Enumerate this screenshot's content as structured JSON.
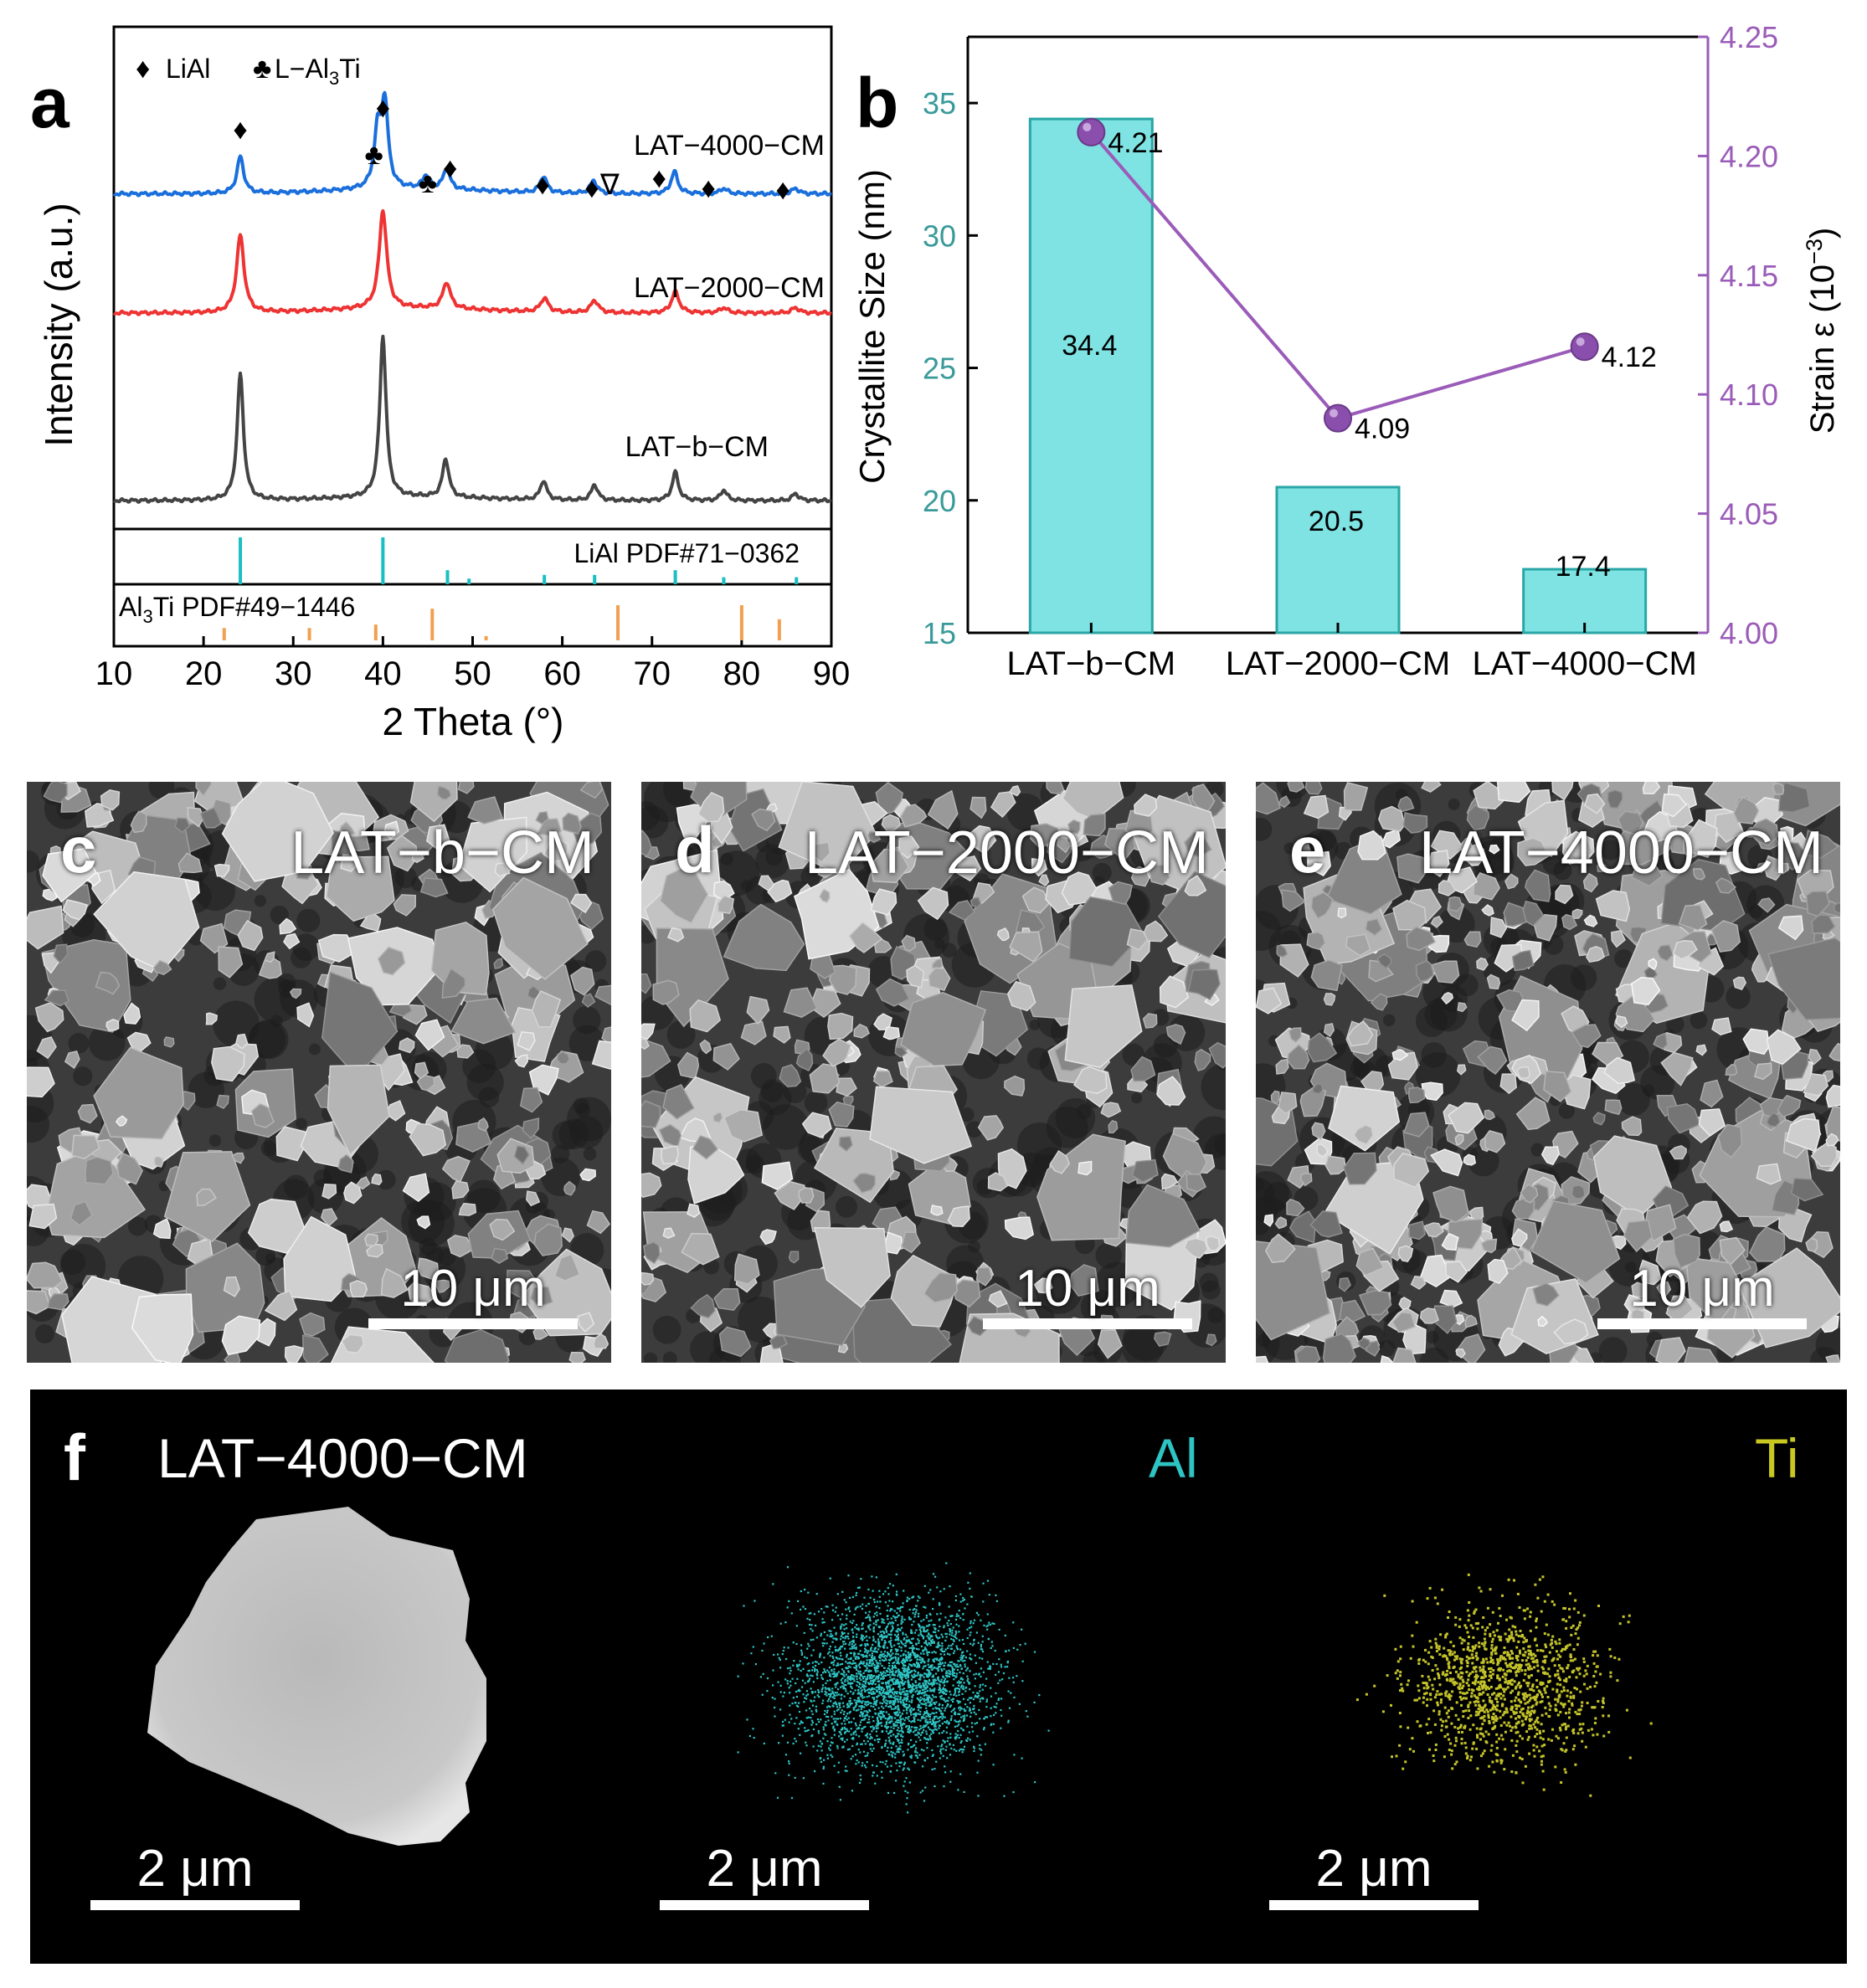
{
  "panel_a": {
    "letter": "a",
    "xlabel": "2 Theta (°)",
    "ylabel": "Intensity (a.u.)",
    "legend_liai": "LiAl",
    "legend_lal3ti": "L−Al",
    "legend_lal3ti_sub": "3",
    "legend_lal3ti_tail": "Ti",
    "ref_liai": "LiAl PDF#71−0362",
    "ref_al3ti": "Al",
    "ref_al3ti_sub": "3",
    "ref_al3ti_tail": "Ti PDF#49−1446",
    "markers": {
      "liai": "♦",
      "lal3ti": "♣",
      "other": "∇"
    }
  },
  "panel_b": {
    "letter": "b",
    "ylabel_left": "Crystallite Size (nm)",
    "ylabel_right": "Strain ε (10",
    "ylabel_right_sup": "−3",
    "ylabel_right_tail": ")"
  },
  "panel_c": {
    "letter": "c",
    "title": "LAT−b−CM",
    "scale": "10 μm"
  },
  "panel_d": {
    "letter": "d",
    "title": "LAT−2000−CM",
    "scale": "10 μm"
  },
  "panel_e": {
    "letter": "e",
    "title": "LAT−4000−CM",
    "scale": "10 μm"
  },
  "panel_f": {
    "letter": "f",
    "title": "LAT−4000−CM",
    "element_al": "Al",
    "element_ti": "Ti",
    "scale_1": "2 μm",
    "scale_2": "2 μm",
    "scale_3": "2 μm"
  },
  "colors": {
    "lat4000": "#1a6fdc",
    "lat2000": "#ee3333",
    "latb": "#444444",
    "liai_ref": "#19bfc3",
    "al3ti_ref": "#f0a050",
    "bar_fill": "#7fe3e3",
    "bar_edge": "#2aa6a6",
    "strain": "#9a5cb8",
    "left_axis_tick": "#3a9a9a",
    "al_map": "#2ec4c4",
    "ti_map": "#c4c42a"
  },
  "chart_data": [
    {
      "type": "line",
      "panel": "a",
      "xlim": [
        10,
        90
      ],
      "xticks": [
        10,
        20,
        30,
        40,
        50,
        60,
        70,
        80,
        90
      ],
      "series": [
        {
          "name": "LAT−4000−CM",
          "baseline": 0.6,
          "peaks": [
            [
              24.1,
              1.0
            ],
            [
              39.4,
              1.45
            ],
            [
              40.2,
              2.3
            ],
            [
              44.8,
              0.35
            ],
            [
              47.1,
              0.55
            ],
            [
              57.9,
              0.45
            ],
            [
              63.5,
              0.35
            ],
            [
              72.5,
              0.6
            ],
            [
              78.0,
              0.15
            ],
            [
              86.0,
              0.15
            ]
          ]
        },
        {
          "name": "LAT−2000−CM",
          "baseline": 0.62,
          "peaks": [
            [
              24.1,
              2.2
            ],
            [
              40.0,
              2.8
            ],
            [
              47.1,
              0.75
            ],
            [
              58.0,
              0.4
            ],
            [
              63.6,
              0.35
            ],
            [
              72.6,
              0.6
            ],
            [
              78.0,
              0.15
            ],
            [
              86.0,
              0.15
            ]
          ]
        },
        {
          "name": "LAT−b−CM",
          "baseline": 0.45,
          "peaks": [
            [
              24.1,
              3.6
            ],
            [
              40.0,
              4.6
            ],
            [
              47.0,
              1.1
            ],
            [
              57.9,
              0.55
            ],
            [
              63.6,
              0.45
            ],
            [
              72.6,
              0.8
            ],
            [
              78.0,
              0.3
            ],
            [
              86.0,
              0.2
            ]
          ]
        }
      ],
      "peak_markers_lat4000": [
        {
          "x": 24.1,
          "sym": "♦"
        },
        {
          "x": 40.0,
          "sym": "♦"
        },
        {
          "x": 39.0,
          "sym": "♣"
        },
        {
          "x": 45.0,
          "sym": "♣"
        },
        {
          "x": 47.5,
          "sym": "♦"
        },
        {
          "x": 57.8,
          "sym": "♦"
        },
        {
          "x": 63.3,
          "sym": "♦"
        },
        {
          "x": 65.3,
          "sym": "∇"
        },
        {
          "x": 70.8,
          "sym": "♦"
        },
        {
          "x": 76.3,
          "sym": "♦"
        },
        {
          "x": 84.6,
          "sym": "♦"
        }
      ],
      "reference_liai": [
        [
          24.1,
          1.0
        ],
        [
          40.0,
          1.0
        ],
        [
          47.2,
          0.3
        ],
        [
          49.6,
          0.12
        ],
        [
          58.0,
          0.2
        ],
        [
          63.6,
          0.2
        ],
        [
          72.6,
          0.3
        ],
        [
          78.0,
          0.15
        ],
        [
          86.1,
          0.15
        ]
      ],
      "reference_al3ti": [
        [
          22.3,
          0.35
        ],
        [
          31.8,
          0.35
        ],
        [
          39.2,
          0.45
        ],
        [
          45.5,
          0.9
        ],
        [
          51.5,
          0.12
        ],
        [
          66.2,
          1.0
        ],
        [
          80.0,
          1.0
        ],
        [
          84.2,
          0.6
        ]
      ]
    },
    {
      "type": "bar",
      "panel": "b",
      "categories": [
        "LAT−b−CM",
        "LAT−2000−CM",
        "LAT−4000−CM"
      ],
      "values": [
        34.4,
        20.5,
        17.4
      ],
      "ylim": [
        15,
        37.5
      ],
      "yticks": [
        15,
        20,
        25,
        30,
        35
      ],
      "secondary": {
        "type": "line",
        "values": [
          4.21,
          4.09,
          4.12
        ],
        "ylim": [
          4.0,
          4.25
        ],
        "yticks": [
          "4.00",
          "4.05",
          "4.10",
          "4.15",
          "4.20",
          "4.25"
        ]
      }
    }
  ]
}
